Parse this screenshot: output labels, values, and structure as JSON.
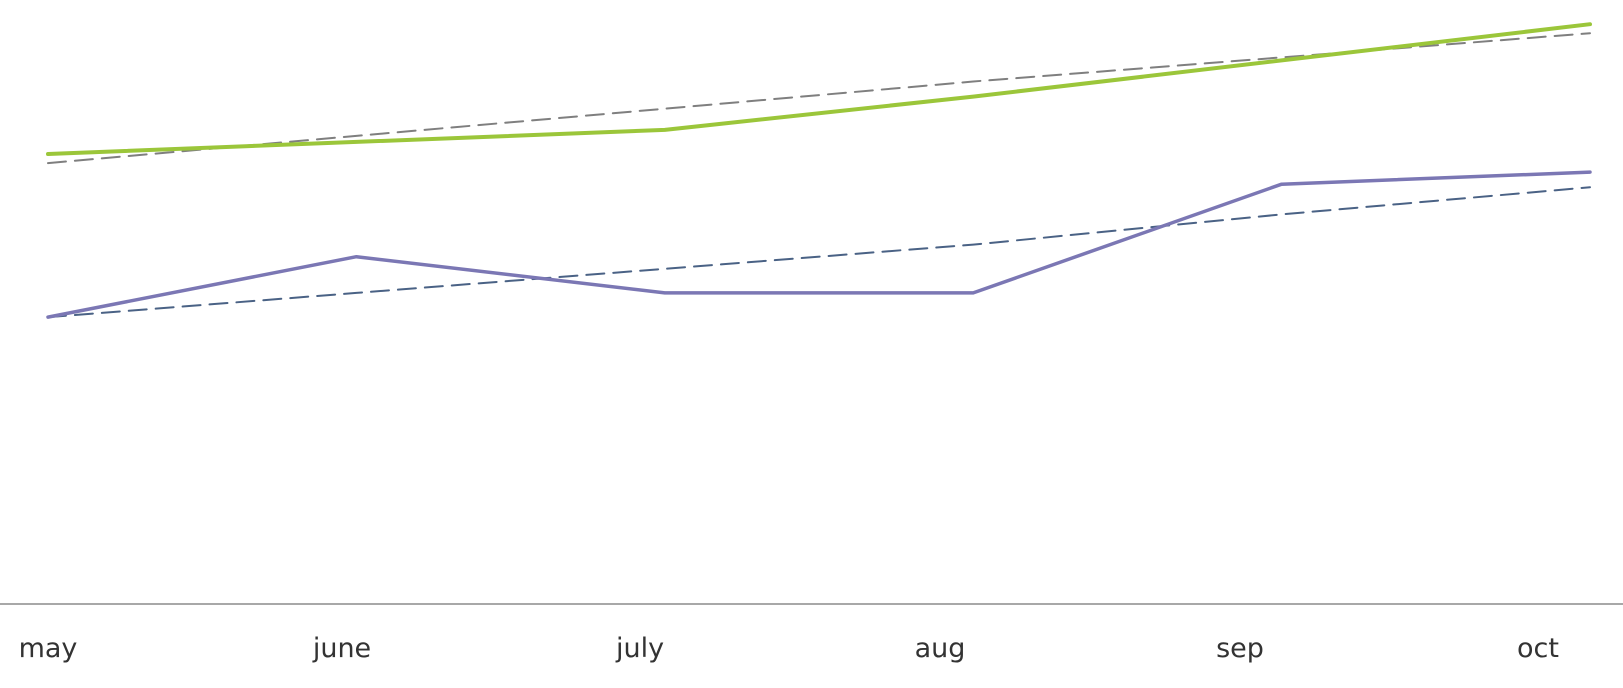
{
  "chart_data": {
    "type": "line",
    "categories": [
      "may",
      "june",
      "july",
      "aug",
      "sep",
      "oct"
    ],
    "x": [
      0,
      1,
      2,
      3,
      4,
      5
    ],
    "ylim": [
      0,
      10
    ],
    "grid": false,
    "legend": "none",
    "title": "",
    "xlabel": "",
    "ylabel": "",
    "series": [
      {
        "values": [
          7.45,
          7.65,
          7.85,
          8.4,
          9.0,
          9.6
        ],
        "color": "#9BC63A",
        "style": "solid"
      },
      {
        "values": [
          4.75,
          5.75,
          5.15,
          5.15,
          6.95,
          7.15
        ],
        "color": "#7B77B4",
        "style": "solid"
      },
      {
        "values": [
          7.3,
          7.75,
          8.2,
          8.65,
          9.05,
          9.45
        ],
        "color": "#7F7F7F",
        "style": "dashed"
      },
      {
        "values": [
          4.75,
          5.15,
          5.55,
          5.95,
          6.45,
          6.9
        ],
        "color": "#4A6285",
        "style": "dashed"
      }
    ]
  }
}
